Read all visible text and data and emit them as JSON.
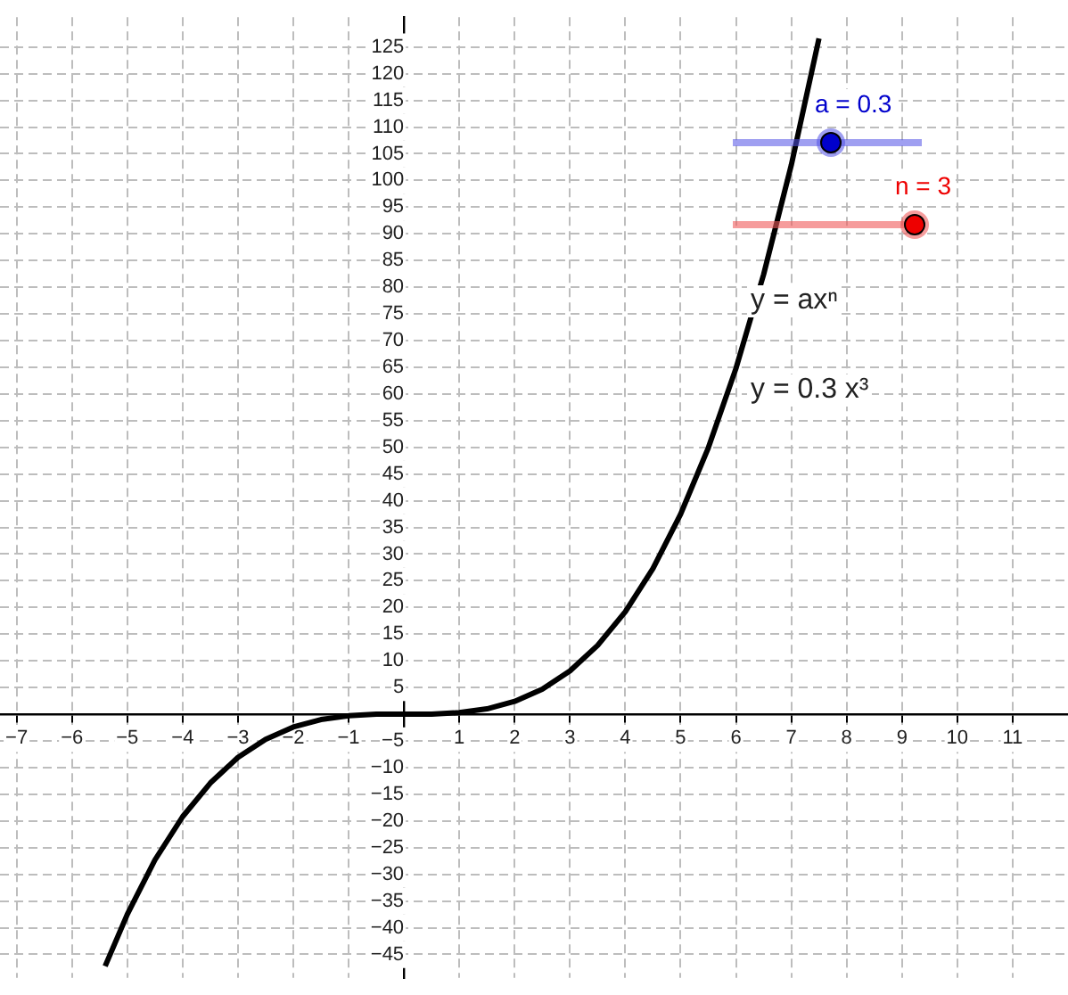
{
  "chart_data": {
    "type": "line",
    "x": [
      -5.4,
      -5,
      -4.5,
      -4,
      -3.5,
      -3,
      -2.5,
      -2,
      -1.5,
      -1,
      -0.5,
      0,
      0.5,
      1,
      1.5,
      2,
      2.5,
      3,
      3.5,
      4,
      4.5,
      5,
      5.5,
      6,
      6.5,
      7,
      7.5
    ],
    "series": [
      {
        "color": "#000000",
        "values": [
          -47.2,
          -37.5,
          -27.3,
          -19.2,
          -12.9,
          -8.1,
          -4.7,
          -2.4,
          -1,
          -0.3,
          0,
          0,
          0,
          0.3,
          1,
          2.4,
          4.7,
          8.1,
          12.9,
          19.2,
          27.3,
          37.5,
          49.9,
          64.8,
          82.4,
          102.9,
          126.6
        ]
      }
    ],
    "xlim": [
      -7.3,
      12
    ],
    "ylim": [
      -49.4,
      130.6
    ],
    "xticks": [
      -7,
      -6,
      -5,
      -4,
      -3,
      -2,
      -1,
      1,
      2,
      3,
      4,
      5,
      6,
      7,
      8,
      9,
      10,
      11
    ],
    "yticks": [
      -45,
      -40,
      -35,
      -30,
      -25,
      -20,
      -15,
      -10,
      -5,
      5,
      10,
      15,
      20,
      25,
      30,
      35,
      40,
      45,
      50,
      55,
      60,
      65,
      70,
      75,
      80,
      85,
      90,
      95,
      100,
      105,
      110,
      115,
      120,
      125
    ],
    "grid": true,
    "legend": false,
    "marker": "none",
    "line_style": "solid",
    "annotations": [
      "a = 0.3",
      "n = 3",
      "y = axⁿ",
      "y = 0.3 x³"
    ]
  }
}
